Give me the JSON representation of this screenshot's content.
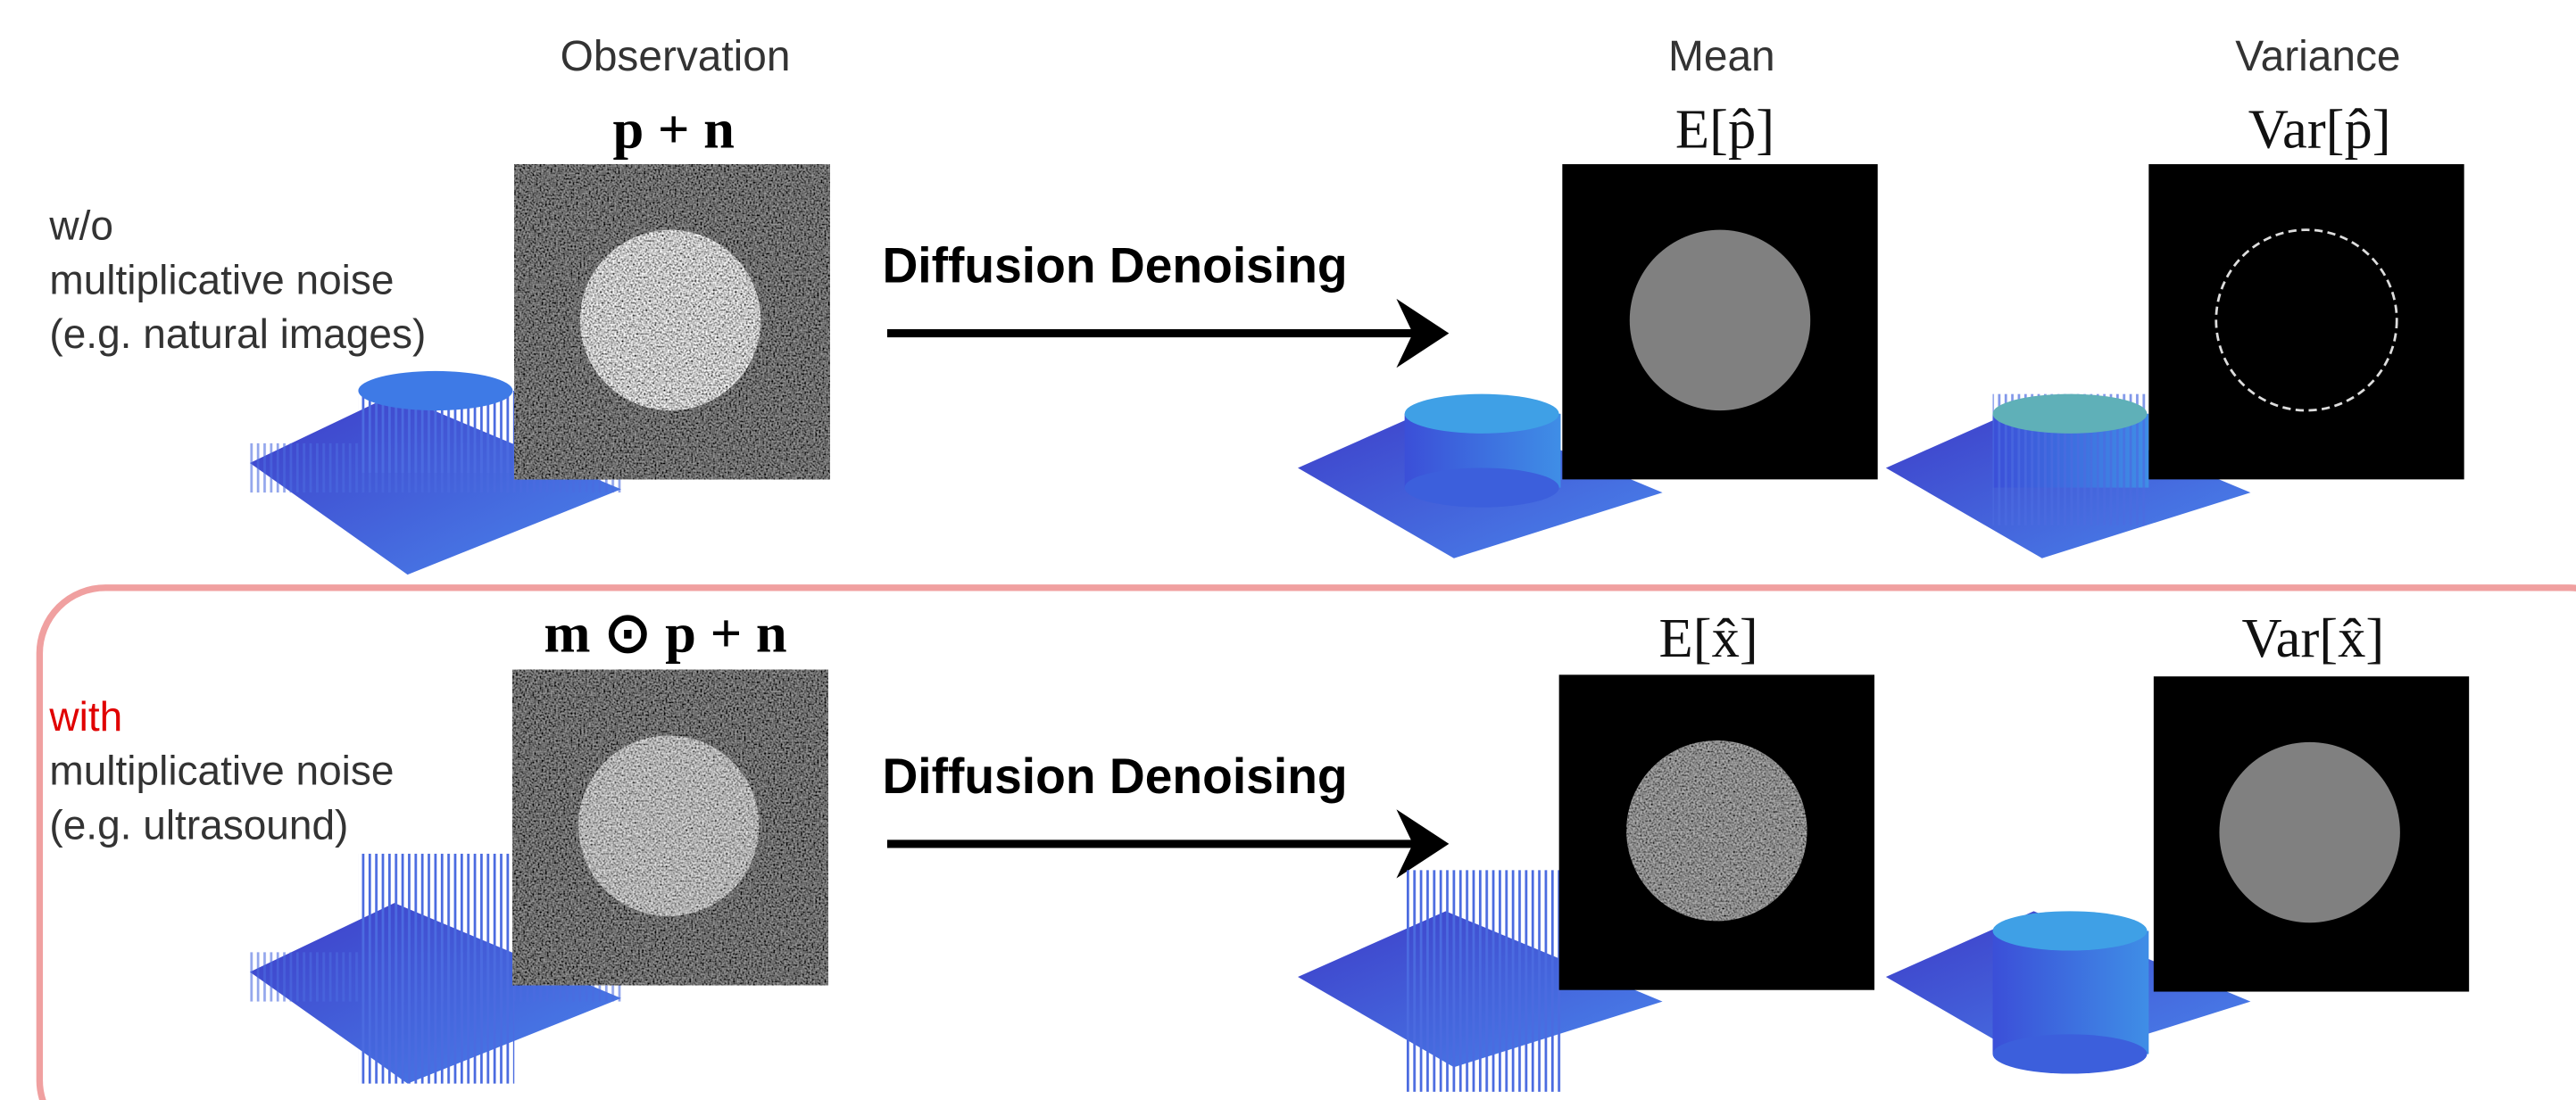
{
  "header": {
    "observation": "Observation",
    "mean": "Mean",
    "variance": "Variance"
  },
  "rows": [
    {
      "label": [
        "w/o",
        "multiplicative noise",
        "(e.g. natural images)"
      ],
      "observation": "p + n",
      "process": "Diffusion Denoising",
      "mean": "E[p̂]",
      "variance": "Var[p̂]"
    },
    {
      "label": [
        "with",
        "multiplicative noise",
        "(e.g. ultrasound)"
      ],
      "observation": "m ⊙ p + n",
      "process": "Diffusion Denoising",
      "mean": "E[x̂]",
      "variance": "Var[x̂]"
    }
  ]
}
